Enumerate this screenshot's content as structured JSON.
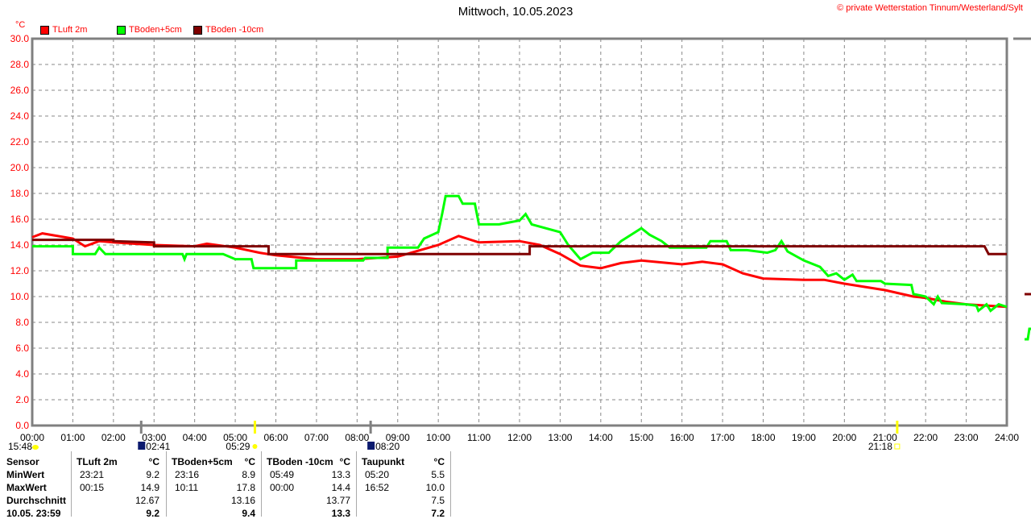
{
  "title": "Mittwoch, 10.05.2023",
  "copyright": "© private Wetterstation Tinnum/Westerland/Sylt",
  "chart_data": {
    "type": "line",
    "ylabel": "°C",
    "ylim": [
      0,
      30
    ],
    "yticks": [
      "0.0",
      "2.0",
      "4.0",
      "6.0",
      "8.0",
      "10.0",
      "12.0",
      "14.0",
      "16.0",
      "18.0",
      "20.0",
      "22.0",
      "24.0",
      "26.0",
      "28.0",
      "30.0"
    ],
    "xlim": [
      0,
      24
    ],
    "xticks": [
      "00:00",
      "01:00",
      "02:00",
      "03:00",
      "04:00",
      "05:00",
      "06:00",
      "07:00",
      "08:00",
      "09:00",
      "10:00",
      "11:00",
      "12:00",
      "13:00",
      "14:00",
      "15:00",
      "16:00",
      "17:00",
      "18:00",
      "19:00",
      "20:00",
      "21:00",
      "22:00",
      "23:00",
      "24:00"
    ],
    "grid": true,
    "legend": "top-left",
    "series": [
      {
        "name": "TLuft 2m",
        "color": "#ff0000",
        "points": [
          [
            0,
            14.6
          ],
          [
            0.25,
            14.9
          ],
          [
            1,
            14.5
          ],
          [
            1.3,
            13.9
          ],
          [
            1.65,
            14.3
          ],
          [
            2,
            14.2
          ],
          [
            3,
            14.0
          ],
          [
            4,
            13.9
          ],
          [
            4.3,
            14.1
          ],
          [
            5,
            13.8
          ],
          [
            5.6,
            13.4
          ],
          [
            6,
            13.2
          ],
          [
            7,
            12.9
          ],
          [
            8,
            12.9
          ],
          [
            9,
            13.1
          ],
          [
            10,
            14.0
          ],
          [
            10.5,
            14.7
          ],
          [
            11,
            14.2
          ],
          [
            12,
            14.3
          ],
          [
            12.5,
            14.0
          ],
          [
            13,
            13.3
          ],
          [
            13.5,
            12.4
          ],
          [
            14,
            12.2
          ],
          [
            14.5,
            12.6
          ],
          [
            15,
            12.8
          ],
          [
            16,
            12.5
          ],
          [
            16.5,
            12.7
          ],
          [
            17,
            12.5
          ],
          [
            17.5,
            11.8
          ],
          [
            18,
            11.4
          ],
          [
            19,
            11.3
          ],
          [
            19.5,
            11.3
          ],
          [
            20,
            11.0
          ],
          [
            21,
            10.5
          ],
          [
            21.7,
            10.0
          ],
          [
            22,
            9.9
          ],
          [
            22.5,
            9.6
          ],
          [
            23,
            9.4
          ],
          [
            24,
            9.2
          ]
        ]
      },
      {
        "name": "TBoden+5cm",
        "color": "#00ff00",
        "points": [
          [
            0,
            13.9
          ],
          [
            1,
            13.9
          ],
          [
            1,
            13.3
          ],
          [
            1.55,
            13.3
          ],
          [
            1.65,
            13.8
          ],
          [
            1.8,
            13.3
          ],
          [
            3.7,
            13.3
          ],
          [
            3.75,
            12.9
          ],
          [
            3.8,
            13.3
          ],
          [
            4.7,
            13.3
          ],
          [
            5,
            12.9
          ],
          [
            5.4,
            12.9
          ],
          [
            5.45,
            12.2
          ],
          [
            6.5,
            12.2
          ],
          [
            6.5,
            12.8
          ],
          [
            8.15,
            12.8
          ],
          [
            8.2,
            13.0
          ],
          [
            8.75,
            13.0
          ],
          [
            8.75,
            13.8
          ],
          [
            9.5,
            13.8
          ],
          [
            9.65,
            14.5
          ],
          [
            10,
            15.0
          ],
          [
            10.1,
            16.5
          ],
          [
            10.18,
            17.8
          ],
          [
            10.5,
            17.8
          ],
          [
            10.6,
            17.2
          ],
          [
            10.9,
            17.2
          ],
          [
            11,
            15.6
          ],
          [
            11.5,
            15.6
          ],
          [
            12,
            15.9
          ],
          [
            12.15,
            16.4
          ],
          [
            12.3,
            15.6
          ],
          [
            13,
            15.0
          ],
          [
            13.2,
            14.0
          ],
          [
            13.5,
            12.9
          ],
          [
            13.8,
            13.4
          ],
          [
            14.2,
            13.4
          ],
          [
            14.5,
            14.3
          ],
          [
            14.8,
            14.9
          ],
          [
            15,
            15.3
          ],
          [
            15.2,
            14.8
          ],
          [
            15.5,
            14.3
          ],
          [
            15.7,
            13.8
          ],
          [
            16.6,
            13.8
          ],
          [
            16.7,
            14.3
          ],
          [
            17.1,
            14.3
          ],
          [
            17.2,
            13.6
          ],
          [
            17.6,
            13.6
          ],
          [
            18.1,
            13.4
          ],
          [
            18.3,
            13.6
          ],
          [
            18.45,
            14.3
          ],
          [
            18.6,
            13.5
          ],
          [
            19,
            12.8
          ],
          [
            19.4,
            12.3
          ],
          [
            19.6,
            11.6
          ],
          [
            19.8,
            11.8
          ],
          [
            20,
            11.3
          ],
          [
            20.2,
            11.7
          ],
          [
            20.3,
            11.2
          ],
          [
            20.9,
            11.2
          ],
          [
            21,
            11.0
          ],
          [
            21.65,
            10.9
          ],
          [
            21.7,
            10.2
          ],
          [
            22,
            10.0
          ],
          [
            22.2,
            9.4
          ],
          [
            22.3,
            10.0
          ],
          [
            22.4,
            9.5
          ],
          [
            23,
            9.4
          ],
          [
            23.25,
            9.3
          ],
          [
            23.3,
            8.9
          ],
          [
            23.5,
            9.4
          ],
          [
            23.6,
            8.9
          ],
          [
            23.8,
            9.4
          ],
          [
            24,
            9.2
          ]
        ]
      },
      {
        "name": "TBoden -10cm",
        "color": "#7f0000",
        "points": [
          [
            0,
            14.4
          ],
          [
            2,
            14.4
          ],
          [
            2,
            14.3
          ],
          [
            3,
            14.2
          ],
          [
            3,
            13.9
          ],
          [
            5.82,
            13.9
          ],
          [
            5.82,
            13.3
          ],
          [
            12.25,
            13.3
          ],
          [
            12.25,
            13.9
          ],
          [
            23.45,
            13.9
          ],
          [
            23.55,
            13.3
          ],
          [
            24,
            13.3
          ]
        ]
      }
    ],
    "astro": [
      {
        "time": "15:48",
        "event": "moon",
        "color": "#ffff00"
      },
      {
        "time": "02:41",
        "event": "moonrise"
      },
      {
        "time": "05:29",
        "event": "sunrise"
      },
      {
        "time": "08:20",
        "event": "moonset"
      },
      {
        "time": "21:18",
        "event": "sunset"
      }
    ]
  },
  "table": {
    "headers": [
      "Sensor",
      "TLuft 2m",
      "°C",
      "TBoden+5cm",
      "°C",
      "TBoden -10cm",
      "°C",
      "Taupunkt",
      "°C"
    ],
    "rows": [
      [
        "MinWert",
        "23:21",
        "9.2",
        "23:16",
        "8.9",
        "05:49",
        "13.3",
        "05:20",
        "5.5"
      ],
      [
        "MaxWert",
        "00:15",
        "14.9",
        "10:11",
        "17.8",
        "00:00",
        "14.4",
        "16:52",
        "10.0"
      ],
      [
        "Durchschnitt",
        "",
        "12.67",
        "",
        "13.16",
        "",
        "13.77",
        "",
        "7.5"
      ],
      [
        "10.05. 23:59",
        "",
        "9.2",
        "",
        "9.4",
        "",
        "13.3",
        "",
        "7.2"
      ]
    ]
  }
}
